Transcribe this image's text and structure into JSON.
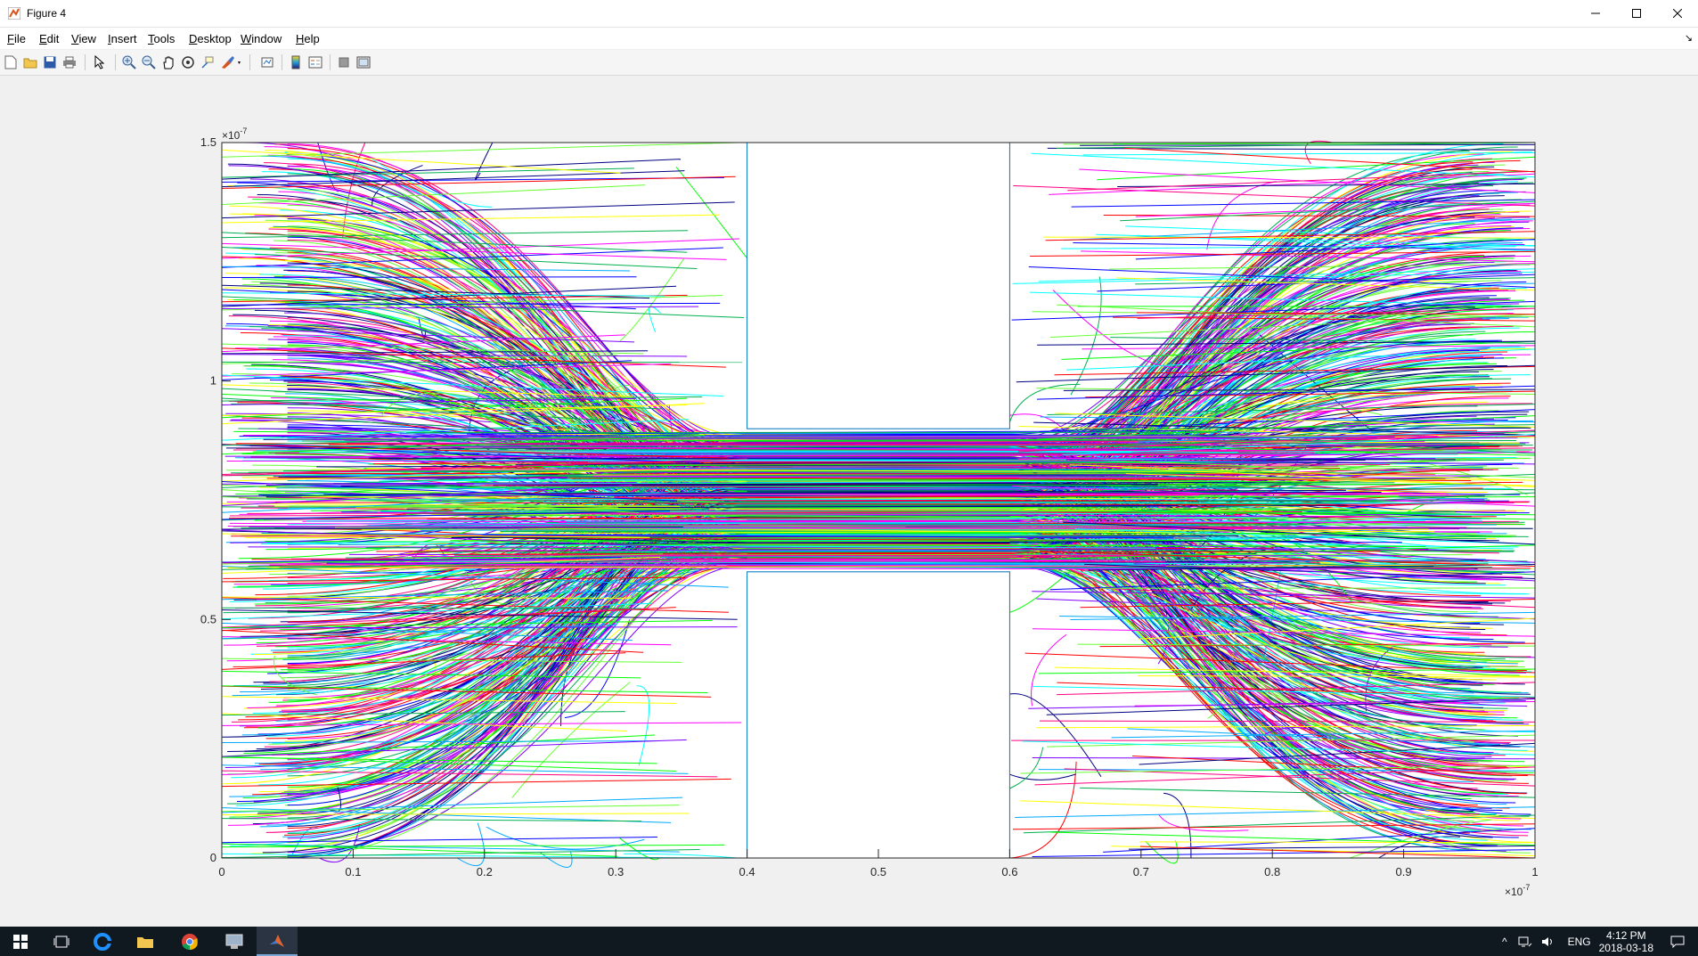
{
  "window": {
    "title": "Figure 4"
  },
  "menu": [
    {
      "label": "File",
      "key": "F",
      "rest": "ile"
    },
    {
      "label": "Edit",
      "key": "E",
      "rest": "dit"
    },
    {
      "label": "View",
      "key": "V",
      "rest": "iew"
    },
    {
      "label": "Insert",
      "key": "I",
      "rest": "nsert"
    },
    {
      "label": "Tools",
      "key": "T",
      "rest": "ools"
    },
    {
      "label": "Desktop",
      "key": "D",
      "rest": "esktop"
    },
    {
      "label": "Window",
      "key": "W",
      "rest": "indow"
    },
    {
      "label": "Help",
      "key": "H",
      "rest": "elp"
    }
  ],
  "toolbar": [
    "new-figure-icon",
    "open-file-icon",
    "save-icon",
    "print-icon",
    "pointer-icon",
    "zoom-in-icon",
    "zoom-out-icon",
    "pan-icon",
    "rotate-icon",
    "data-cursor-icon",
    "brush-icon",
    "link-plot-icon",
    "colorbar-icon",
    "legend-icon",
    "hide-plot-tools-icon",
    "show-plot-tools-icon"
  ],
  "chart_data": {
    "type": "line",
    "description_free": true,
    "xlim": [
      0,
      1
    ],
    "ylim": [
      0,
      1.5
    ],
    "x_multiplier": "×10",
    "x_exponent": "-7",
    "y_multiplier": "×10",
    "y_exponent": "-7",
    "xticks": [
      "0",
      "0.1",
      "0.2",
      "0.3",
      "0.4",
      "0.5",
      "0.6",
      "0.7",
      "0.8",
      "0.9",
      "1"
    ],
    "yticks": [
      "0",
      "0.5",
      "1",
      "1.5"
    ],
    "obstacles": [
      {
        "x": [
          0.4,
          0.6
        ],
        "y": [
          0.9,
          1.5
        ]
      },
      {
        "x": [
          0.4,
          0.6
        ],
        "y": [
          0,
          0.6
        ]
      }
    ],
    "channel": {
      "y": [
        0.6,
        0.9
      ]
    },
    "line_colors": [
      "#0000ff",
      "#ff0000",
      "#00ff00",
      "#ff00ff",
      "#00ffff",
      "#ffff00",
      "#000080",
      "#00b050",
      "#ff0080",
      "#8000ff",
      "#00aaff",
      "#66ff33"
    ]
  },
  "taskbar": {
    "apps": [
      "start-icon",
      "task-view-icon",
      "edge-icon",
      "file-explorer-icon",
      "chrome-icon",
      "settings-app-icon",
      "matlab-icon"
    ],
    "language": "ENG",
    "time": "4:12 PM",
    "date": "2018-03-18"
  }
}
